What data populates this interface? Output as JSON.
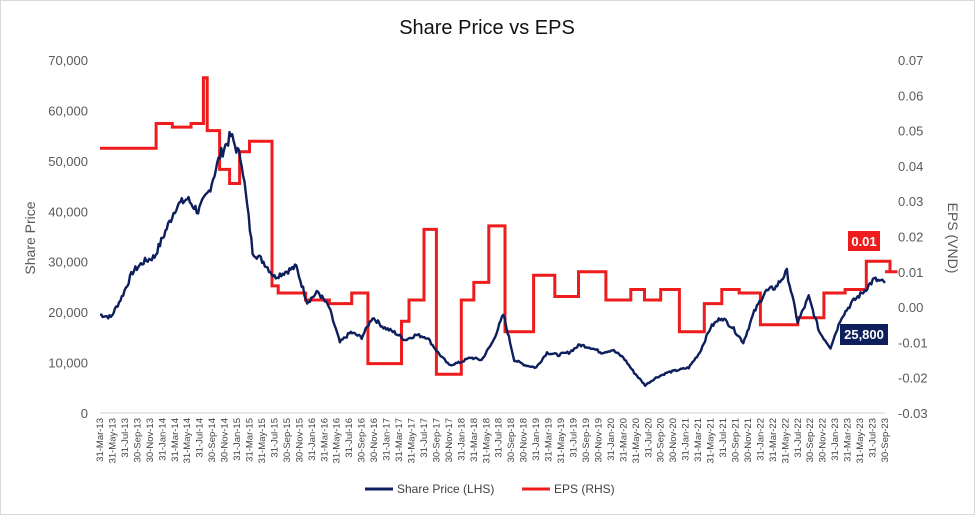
{
  "chart_data": {
    "type": "line",
    "title": "Share Price vs EPS",
    "ylabel_left": "Share Price",
    "ylabel_right": "EPS (VND)",
    "ylim_left": [
      0,
      70000
    ],
    "ylim_right": [
      -0.03,
      0.07
    ],
    "yticks_left": [
      "0",
      "10,000",
      "20,000",
      "30,000",
      "40,000",
      "50,000",
      "60,000",
      "70,000"
    ],
    "yticks_right": [
      "-0.03",
      "-0.02",
      "-0.01",
      "0.00",
      "0.01",
      "0.02",
      "0.03",
      "0.04",
      "0.05",
      "0.06",
      "0.07"
    ],
    "x_labels": [
      "31-Mar-13",
      "31-May-13",
      "31-Jul-13",
      "30-Sep-13",
      "30-Nov-13",
      "31-Jan-14",
      "31-Mar-14",
      "31-May-14",
      "31-Jul-14",
      "30-Sep-14",
      "30-Nov-14",
      "31-Jan-15",
      "31-Mar-15",
      "31-May-15",
      "31-Jul-15",
      "30-Sep-15",
      "30-Nov-15",
      "31-Jan-16",
      "31-Mar-16",
      "31-May-16",
      "31-Jul-16",
      "30-Sep-16",
      "30-Nov-16",
      "31-Jan-17",
      "31-Mar-17",
      "31-May-17",
      "31-Jul-17",
      "30-Sep-17",
      "30-Nov-17",
      "31-Jan-18",
      "31-Mar-18",
      "31-May-18",
      "31-Jul-18",
      "30-Sep-18",
      "30-Nov-18",
      "31-Jan-19",
      "31-Mar-19",
      "31-May-19",
      "31-Jul-19",
      "30-Sep-19",
      "30-Nov-19",
      "31-Jan-20",
      "31-Mar-20",
      "31-May-20",
      "31-Jul-20",
      "30-Sep-20",
      "30-Nov-20",
      "31-Jan-21",
      "31-Mar-21",
      "31-May-21",
      "31-Jul-21",
      "30-Sep-21",
      "30-Nov-21",
      "31-Jan-22",
      "31-Mar-22",
      "31-May-22",
      "31-Jul-22",
      "30-Sep-22",
      "30-Nov-22",
      "31-Jan-23",
      "31-Mar-23",
      "31-May-23",
      "31-Jul-23",
      "30-Sep-23"
    ],
    "series": [
      {
        "name": "Share Price (LHS)",
        "axis": "left",
        "color": "#0d1f5c",
        "values": [
          19500,
          19000,
          23000,
          28000,
          30000,
          31000,
          36000,
          41000,
          42500,
          40000,
          44000,
          51000,
          55000,
          50000,
          32000,
          30000,
          27000,
          28000,
          29000,
          22000,
          24000,
          21000,
          14000,
          16000,
          15000,
          19000,
          17000,
          16000,
          14500,
          15500,
          15000,
          12000,
          9500,
          10000,
          11000,
          10500,
          14000,
          19500,
          10500,
          9500,
          9000,
          12000,
          11500,
          12000,
          13500,
          13000,
          12000,
          12500,
          11000,
          8000,
          5500,
          7000,
          8000,
          8500,
          9000,
          12000,
          17000,
          19000,
          17000,
          14000,
          20000,
          24000,
          25000,
          28000,
          18000,
          23000,
          16000,
          13000,
          19000,
          22000,
          24000,
          26500,
          25800
        ]
      },
      {
        "name": "EPS (RHS)",
        "axis": "right",
        "color": "#ee1c1c",
        "x_step": [
          0,
          4.5,
          5.8,
          6.8,
          7.3,
          8.3,
          8.6,
          9.6,
          10.4,
          11.2,
          12.0,
          13.8,
          14.3,
          16.5,
          18.4,
          20.2,
          21.5,
          24.2,
          24.8,
          26.0,
          27.0,
          29.0,
          30.0,
          31.2,
          32.5,
          34.8,
          36.5,
          38.4,
          40.6,
          42.6,
          43.7,
          45.0,
          46.5,
          48.5,
          49.9,
          51.3,
          53.0,
          55.6,
          56.0,
          58.1,
          59.8,
          61.5,
          62.5,
          63.4,
          64.0
        ],
        "values": [
          0.045,
          0.052,
          0.051,
          0.051,
          0.052,
          0.065,
          0.05,
          0.039,
          0.035,
          0.044,
          0.047,
          0.006,
          0.004,
          0.002,
          0.001,
          0.004,
          -0.016,
          -0.004,
          0.002,
          0.022,
          -0.019,
          0.002,
          0.007,
          0.023,
          -0.007,
          0.009,
          0.003,
          0.01,
          0.002,
          0.005,
          0.002,
          0.005,
          -0.007,
          0.001,
          0.005,
          0.004,
          -0.005,
          -0.005,
          -0.003,
          0.004,
          0.005,
          0.013,
          0.013,
          0.01,
          0.01
        ]
      }
    ],
    "callouts": {
      "eps_last": "0.01",
      "price_last": "25,800",
      "eps_color": "#ee1c1c",
      "price_color": "#0d1f5c"
    },
    "legend": {
      "position": "bottom",
      "items": [
        "Share Price (LHS)",
        "EPS (RHS)"
      ]
    },
    "grid": false
  }
}
